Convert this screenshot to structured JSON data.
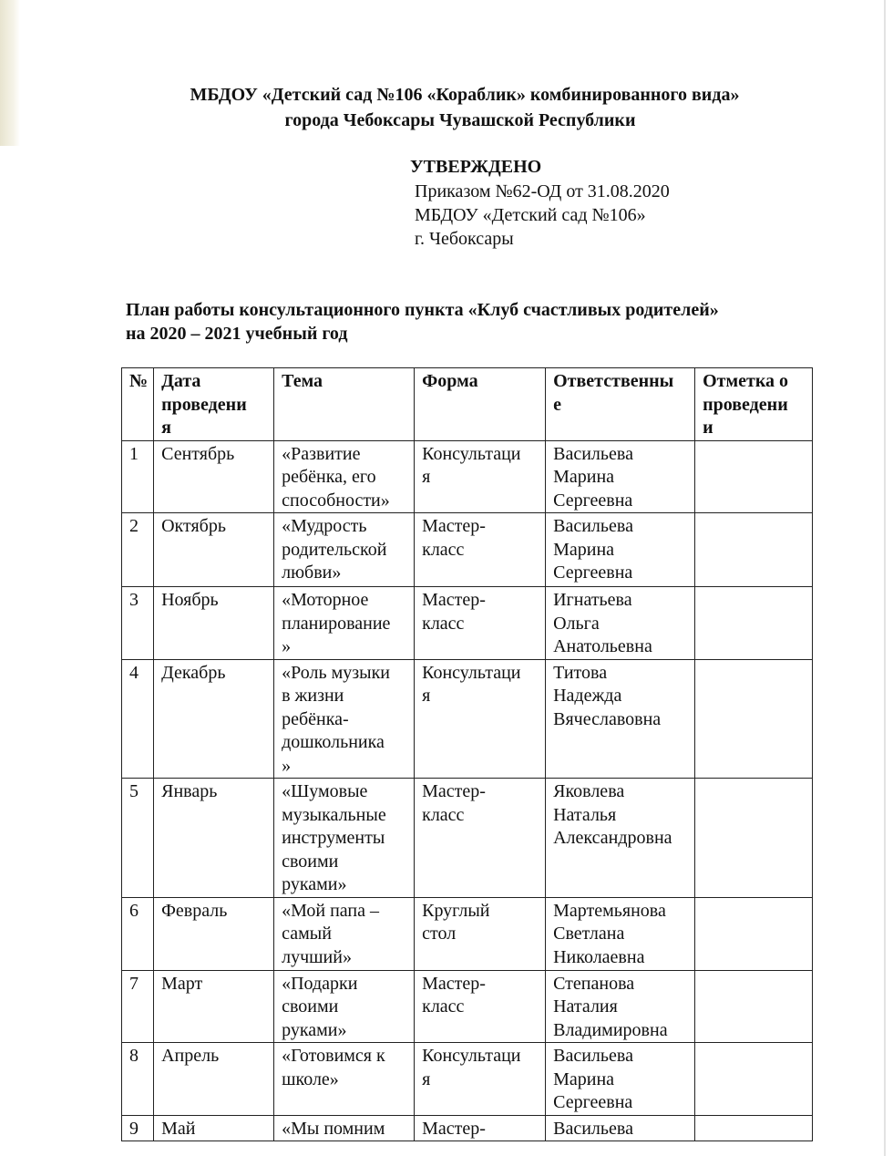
{
  "header": {
    "line1": "МБДОУ «Детский сад №106 «Кораблик» комбинированного вида»",
    "line2": "города Чебоксары Чувашской Республики"
  },
  "approval": {
    "title": "УТВЕРЖДЕНО",
    "lines": [
      "Приказом №62-ОД от 31.08.2020",
      "МБДОУ «Детский сад №106»",
      "г. Чебоксары"
    ]
  },
  "plan_title": {
    "line1": "План работы консультационного пункта  «Клуб счастливых родителей»",
    "line2": "на 2020 – 2021 учебный год"
  },
  "table": {
    "headers": [
      "№",
      "Дата\nпроведени\nя",
      "Тема",
      "Форма",
      "Ответственны\nе",
      "Отметка  о\nпроведени\nи"
    ],
    "rows": [
      [
        "1",
        "Сентябрь",
        "«Развитие\nребёнка,    его\nспособности»",
        "Консультаци\nя",
        "Васильева\nМарина\nСергеевна",
        ""
      ],
      [
        "2",
        "Октябрь",
        "«Мудрость\nродительской\nлюбви»",
        "Мастер-\nкласс",
        "Васильева\nМарина\nСергеевна",
        ""
      ],
      [
        "3",
        "Ноябрь",
        "«Моторное\nпланирование\n»",
        "Мастер-\nкласс",
        "Игнатьева\nОльга\nАнатольевна",
        ""
      ],
      [
        "4",
        "Декабрь",
        "«Роль  музыки\nв      жизни\nребёнка-\nдошкольника\n»",
        "Консультаци\nя",
        "Титова\nНадежда\nВячеславовна",
        ""
      ],
      [
        "5",
        "Январь",
        "«Шумовые\nмузыкальные\nинструменты\nсвоими\nруками»",
        "Мастер-\nкласс",
        "Яковлева\nНаталья\nАлександровна",
        ""
      ],
      [
        "6",
        "Февраль",
        "«Мой   папа  –\nсамый\nлучший»",
        "Круглый\nстол",
        "Мартемьянова\nСветлана\nНиколаевна",
        ""
      ],
      [
        "7",
        "Март",
        "«Подарки\nсвоими\nруками»",
        "Мастер-\nкласс",
        "Степанова\nНаталия\nВладимировна",
        ""
      ],
      [
        "8",
        "Апрель",
        "«Готовимся  к\nшколе»",
        "Консультаци\nя",
        "Васильева\nМарина\nСергеевна",
        ""
      ],
      [
        "9",
        "Май",
        "«Мы    помним",
        "Мастер-",
        "Васильева",
        ""
      ]
    ]
  }
}
